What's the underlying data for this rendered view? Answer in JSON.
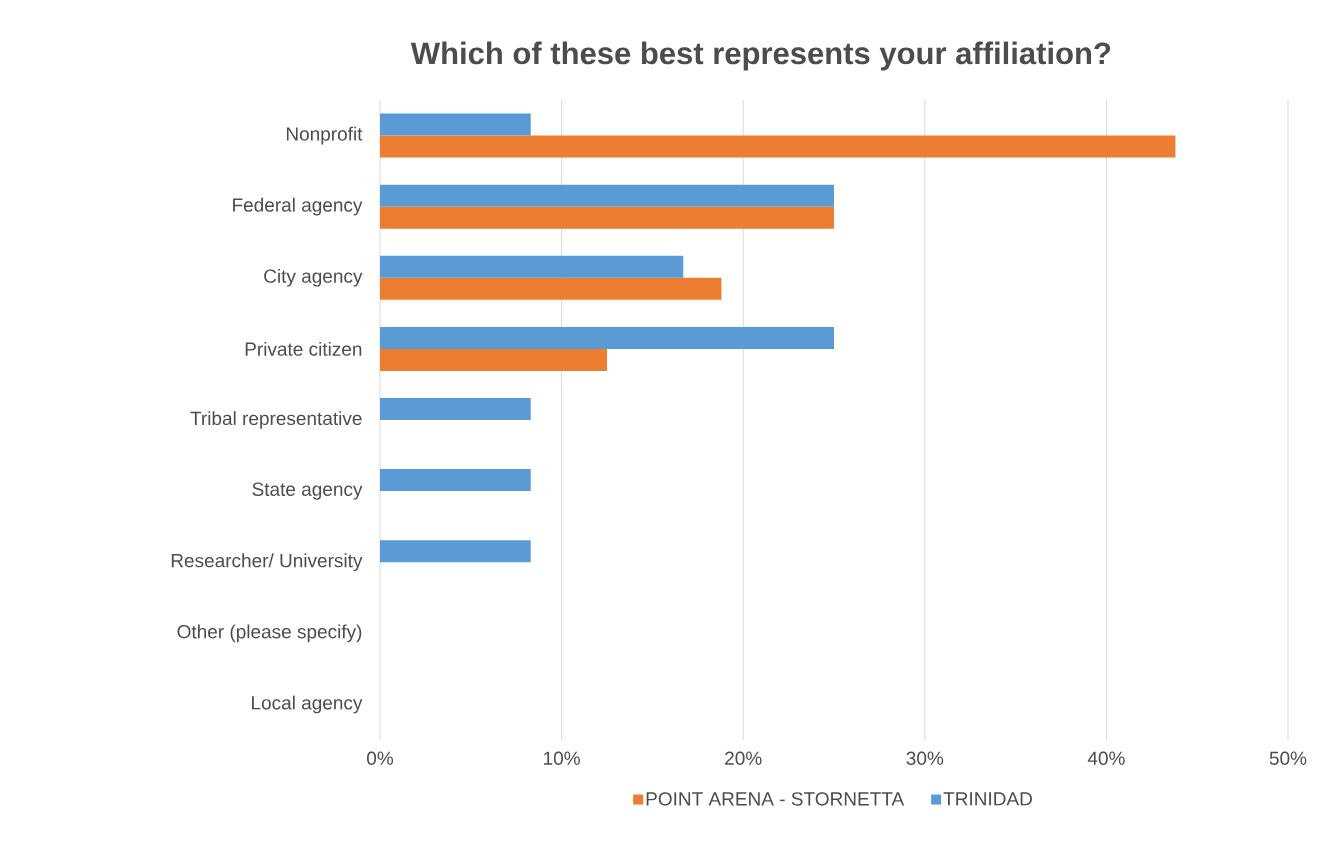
{
  "chart_data": {
    "type": "bar",
    "orientation": "horizontal",
    "title": "Which of these best represents your affiliation?",
    "categories": [
      "Nonprofit",
      "Federal agency",
      "City agency",
      "Private citizen",
      "Tribal representative",
      "State agency",
      "Researcher/ University",
      "Other (please specify)",
      "Local agency"
    ],
    "series": [
      {
        "name": "POINT ARENA - STORNETTA",
        "color": "#ed7d31",
        "values": [
          43.8,
          25,
          18.8,
          12.5,
          0,
          0,
          0,
          0,
          0
        ]
      },
      {
        "name": "TRINIDAD",
        "color": "#5b9bd5",
        "values": [
          8.3,
          25,
          16.7,
          25,
          8.3,
          8.3,
          8.3,
          0,
          0
        ]
      }
    ],
    "xlim": [
      0,
      50
    ],
    "xticks": [
      {
        "value": 0,
        "label": "0%"
      },
      {
        "value": 10,
        "label": "10%"
      },
      {
        "value": 20,
        "label": "20%"
      },
      {
        "value": 30,
        "label": "30%"
      },
      {
        "value": 40,
        "label": "40%"
      },
      {
        "value": 50,
        "label": "50%"
      }
    ],
    "grid": "x",
    "legend": "bottom"
  }
}
